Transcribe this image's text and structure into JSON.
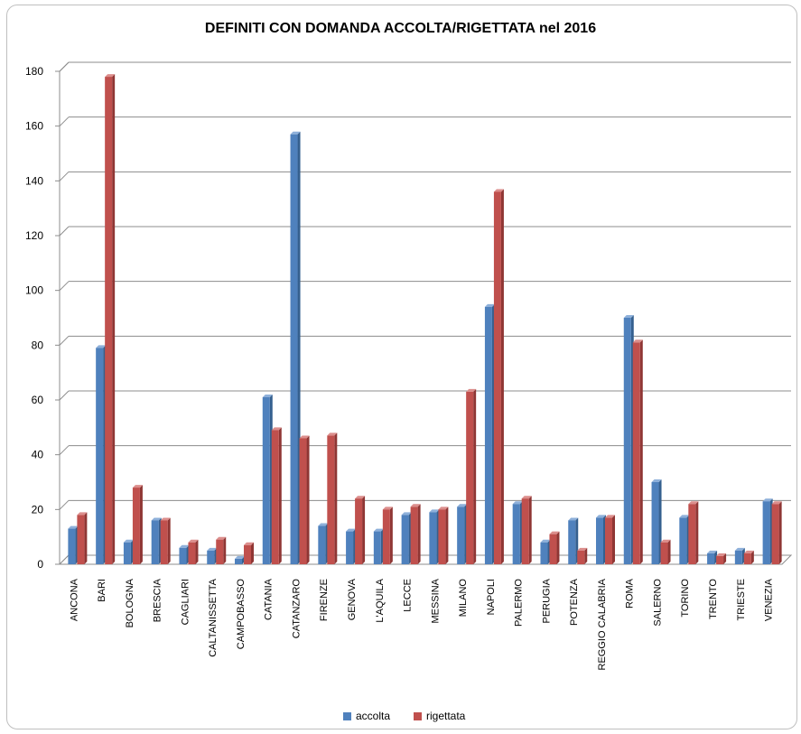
{
  "chart_data": {
    "type": "bar",
    "title": "DEFINITI CON DOMANDA ACCOLTA/RIGETTATA  nel 2016",
    "xlabel": "",
    "ylabel": "",
    "ylim": [
      0,
      180
    ],
    "yticks": [
      0,
      20,
      40,
      60,
      80,
      100,
      120,
      140,
      160,
      180
    ],
    "grid": true,
    "legend": "bottom",
    "categories": [
      "ANCONA",
      "BARI",
      "BOLOGNA",
      "BRESCIA",
      "CAGLIARI",
      "CALTANISSETTA",
      "CAMPOBASSO",
      "CATANIA",
      "CATANZARO",
      "FIRENZE",
      "GENOVA",
      "L'AQUILA",
      "LECCE",
      "MESSINA",
      "MILANO",
      "NAPOLI",
      "PALERMO",
      "PERUGIA",
      "POTENZA",
      "REGGIO CALABRIA",
      "ROMA",
      "SALERNO",
      "TORINO",
      "TRENTO",
      "TRIESTE",
      "VENEZIA"
    ],
    "series": [
      {
        "name": "accolta",
        "color": "#4f81bd",
        "values": [
          13,
          79,
          8,
          16,
          6,
          5,
          2,
          61,
          157,
          14,
          12,
          12,
          18,
          19,
          21,
          94,
          22,
          8,
          16,
          17,
          90,
          30,
          17,
          4,
          5,
          23
        ]
      },
      {
        "name": "rigettata",
        "color": "#c0504d",
        "values": [
          18,
          178,
          28,
          16,
          8,
          9,
          7,
          49,
          46,
          47,
          24,
          20,
          21,
          20,
          63,
          136,
          24,
          11,
          5,
          17,
          81,
          8,
          22,
          3,
          4,
          22
        ]
      }
    ]
  }
}
